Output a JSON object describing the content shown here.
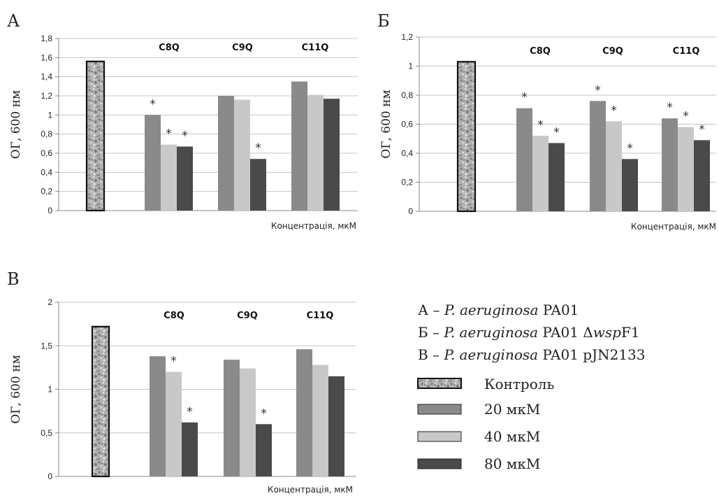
{
  "chart_data": [
    {
      "type": "bar",
      "panel_letter": "А",
      "ylabel": "ОГ, 600 нм",
      "xlabel": "Концентрація, мкМ",
      "yticks": [
        "0",
        "0,2",
        "0,4",
        "0,6",
        "0,8",
        "1",
        "1,2",
        "1,4",
        "1,6",
        "1,8"
      ],
      "ylim": [
        0,
        1.8
      ],
      "grid": true,
      "control": 1.56,
      "groups": [
        {
          "label": "C8Q",
          "values": [
            1.0,
            0.69,
            0.67
          ],
          "asterisks": [
            "*",
            "*",
            "*"
          ]
        },
        {
          "label": "C9Q",
          "values": [
            1.2,
            1.16,
            0.54
          ],
          "asterisks": [
            "",
            "",
            "*"
          ]
        },
        {
          "label": "C11Q",
          "values": [
            1.35,
            1.21,
            1.17
          ],
          "asterisks": [
            "",
            "",
            ""
          ]
        }
      ]
    },
    {
      "type": "bar",
      "panel_letter": "Б",
      "ylabel": "ОГ, 600 нм",
      "xlabel": "Концентрація, мкМ",
      "yticks": [
        "0",
        "0,2",
        "0,4",
        "0,6",
        "0,8",
        "1",
        "1,2"
      ],
      "ylim": [
        0,
        1.2
      ],
      "grid": true,
      "control": 1.03,
      "groups": [
        {
          "label": "C8Q",
          "values": [
            0.71,
            0.52,
            0.47
          ],
          "asterisks": [
            "*",
            "*",
            "*"
          ]
        },
        {
          "label": "C9Q",
          "values": [
            0.76,
            0.62,
            0.36
          ],
          "asterisks": [
            "*",
            "*",
            "*"
          ]
        },
        {
          "label": "C11Q",
          "values": [
            0.64,
            0.58,
            0.49
          ],
          "asterisks": [
            "*",
            "*",
            "*"
          ]
        }
      ]
    },
    {
      "type": "bar",
      "panel_letter": "В",
      "ylabel": "ОГ, 600 нм",
      "xlabel": "Концентрація, мкМ",
      "yticks": [
        "0",
        "0,5",
        "1",
        "1,5",
        "2"
      ],
      "ylim": [
        0,
        2
      ],
      "grid": true,
      "control": 1.72,
      "groups": [
        {
          "label": "C8Q",
          "values": [
            1.38,
            1.2,
            0.62
          ],
          "asterisks": [
            "",
            "*",
            "*"
          ]
        },
        {
          "label": "C9Q",
          "values": [
            1.34,
            1.24,
            0.6
          ],
          "asterisks": [
            "",
            "",
            "*"
          ]
        },
        {
          "label": "C11Q",
          "values": [
            1.46,
            1.28,
            1.15
          ],
          "asterisks": [
            "",
            "",
            ""
          ]
        }
      ]
    }
  ],
  "legend": {
    "strains": [
      {
        "letter": "А",
        "dash": " – ",
        "species": "P. aeruginosa",
        "strain": " PA01",
        "extra_prefix": "",
        "extra_italic": "",
        "extra_suffix": ""
      },
      {
        "letter": "Б",
        "dash": " – ",
        "species": "P. aeruginosa",
        "strain": " PA01",
        "extra_prefix": " Δ",
        "extra_italic": "wsp",
        "extra_suffix": "F1"
      },
      {
        "letter": "В",
        "dash": " – ",
        "species": "P. aeruginosa",
        "strain": " PA01 pJN2133",
        "extra_prefix": "",
        "extra_italic": "",
        "extra_suffix": ""
      }
    ],
    "items": [
      {
        "label": "Контроль",
        "kind": "control"
      },
      {
        "label": "20 мкМ",
        "kind": "c20"
      },
      {
        "label": "40 мкМ",
        "kind": "c40"
      },
      {
        "label": "80 мкМ",
        "kind": "c80"
      }
    ]
  },
  "colors": {
    "c20": "#8a8a8a",
    "c40": "#c8c8c8",
    "c80": "#4a4a4a",
    "grid": "#c4c4c4",
    "axis": "#888888"
  }
}
